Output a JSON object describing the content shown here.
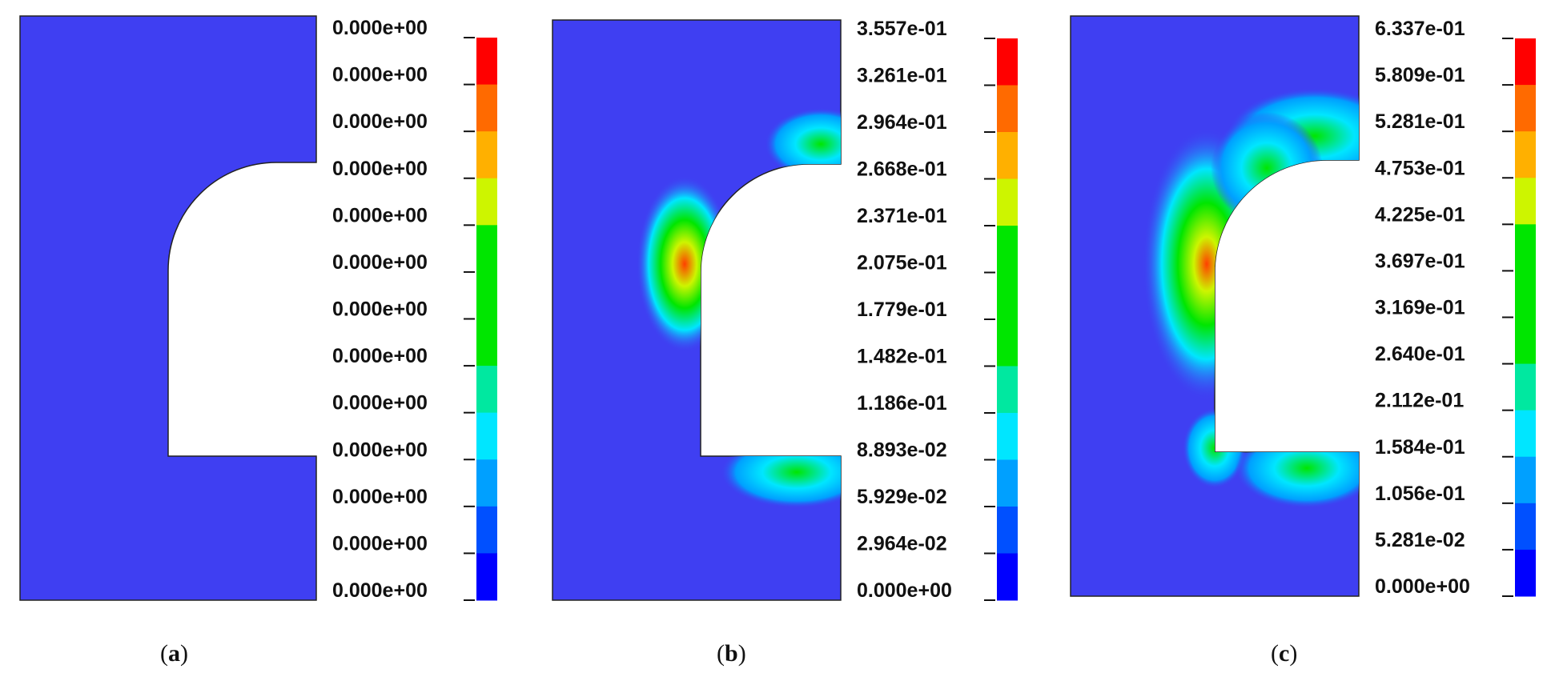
{
  "colors": {
    "background": "#3f3ff2",
    "outline": "#222222",
    "legend": [
      "#0000ff",
      "#0050ff",
      "#00a0ff",
      "#00e6ff",
      "#00e8a0",
      "#00e600",
      "#00e600",
      "#00e600",
      "#cdf500",
      "#ffb000",
      "#ff6a00",
      "#ff0000"
    ]
  },
  "panels": [
    {
      "id": "a",
      "caption": "a",
      "legend_labels": [
        "0.000e+00",
        "0.000e+00",
        "0.000e+00",
        "0.000e+00",
        "0.000e+00",
        "0.000e+00",
        "0.000e+00",
        "0.000e+00",
        "0.000e+00",
        "0.000e+00",
        "0.000e+00",
        "0.000e+00",
        "0.000e+00"
      ],
      "hotspots": []
    },
    {
      "id": "b",
      "caption": "b",
      "legend_labels": [
        "3.557e-01",
        "3.261e-01",
        "2.964e-01",
        "2.668e-01",
        "2.371e-01",
        "2.075e-01",
        "1.779e-01",
        "1.482e-01",
        "1.186e-01",
        "8.893e-02",
        "5.929e-02",
        "2.964e-02",
        "0.000e+00"
      ],
      "hotspots": [
        "arch-top",
        "left-wall-upper",
        "floor-right"
      ]
    },
    {
      "id": "c",
      "caption": "c",
      "legend_labels": [
        "6.337e-01",
        "5.809e-01",
        "5.281e-01",
        "4.753e-01",
        "4.225e-01",
        "3.697e-01",
        "3.169e-01",
        "2.640e-01",
        "2.112e-01",
        "1.584e-01",
        "1.056e-01",
        "5.281e-02",
        "0.000e+00"
      ],
      "hotspots": [
        "arch-top",
        "arch-mid",
        "left-wall",
        "floor-left",
        "floor-right"
      ]
    }
  ]
}
